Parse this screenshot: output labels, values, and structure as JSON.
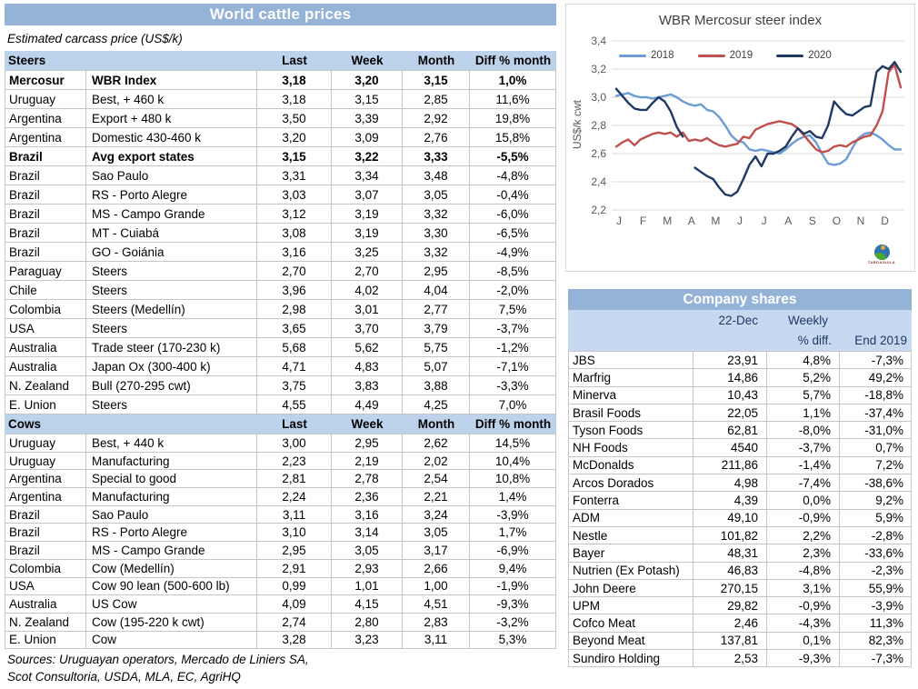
{
  "left_table": {
    "title": "World cattle prices",
    "subtitle": "Estimated carcass price (US$/k)",
    "col_last": "Last",
    "col_week": "Week",
    "col_month": "Month",
    "col_diff": "Diff % month",
    "steers_label": "Steers",
    "cows_label": "Cows",
    "steers_rows": [
      {
        "country": "Mercosur",
        "item": "WBR Index",
        "last": "3,18",
        "week": "3,20",
        "month": "3,15",
        "diff": "1,0%",
        "bold": true
      },
      {
        "country": "Uruguay",
        "item": "Best, + 460 k",
        "last": "3,18",
        "week": "3,15",
        "month": "2,85",
        "diff": "11,6%"
      },
      {
        "country": "Argentina",
        "item": "Export + 480 k",
        "last": "3,50",
        "week": "3,39",
        "month": "2,92",
        "diff": "19,8%"
      },
      {
        "country": "Argentina",
        "item": "Domestic 430-460 k",
        "last": "3,20",
        "week": "3,09",
        "month": "2,76",
        "diff": "15,8%"
      },
      {
        "country": "Brazil",
        "item": "Avg export states",
        "last": "3,15",
        "week": "3,22",
        "month": "3,33",
        "diff": "-5,5%",
        "bold": true
      },
      {
        "country": "Brazil",
        "item": "Sao Paulo",
        "last": "3,31",
        "week": "3,34",
        "month": "3,48",
        "diff": "-4,8%"
      },
      {
        "country": "Brazil",
        "item": "RS - Porto Alegre",
        "last": "3,03",
        "week": "3,07",
        "month": "3,05",
        "diff": "-0,4%"
      },
      {
        "country": "Brazil",
        "item": "MS - Campo Grande",
        "last": "3,12",
        "week": "3,19",
        "month": "3,32",
        "diff": "-6,0%"
      },
      {
        "country": "Brazil",
        "item": "MT - Cuiabá",
        "last": "3,08",
        "week": "3,19",
        "month": "3,30",
        "diff": "-6,5%"
      },
      {
        "country": "Brazil",
        "item": "GO - Goiánia",
        "last": "3,16",
        "week": "3,25",
        "month": "3,32",
        "diff": "-4,9%"
      },
      {
        "country": "Paraguay",
        "item": "Steers",
        "last": "2,70",
        "week": "2,70",
        "month": "2,95",
        "diff": "-8,5%"
      },
      {
        "country": "Chile",
        "item": "Steers",
        "last": "3,96",
        "week": "4,02",
        "month": "4,04",
        "diff": "-2,0%"
      },
      {
        "country": "Colombia",
        "item": "Steers (Medellín)",
        "last": "2,98",
        "week": "3,01",
        "month": "2,77",
        "diff": "7,5%"
      },
      {
        "country": "USA",
        "item": "Steers",
        "last": "3,65",
        "week": "3,70",
        "month": "3,79",
        "diff": "-3,7%"
      },
      {
        "country": "Australia",
        "item": "Trade steer (170-230 k)",
        "last": "5,68",
        "week": "5,62",
        "month": "5,75",
        "diff": "-1,2%"
      },
      {
        "country": "Australia",
        "item": "Japan Ox (300-400 k)",
        "last": "4,71",
        "week": "4,83",
        "month": "5,07",
        "diff": "-7,1%"
      },
      {
        "country": "N. Zealand",
        "item": "Bull (270-295 cwt)",
        "last": "3,75",
        "week": "3,83",
        "month": "3,88",
        "diff": "-3,3%"
      },
      {
        "country": "E. Union",
        "item": "Steers",
        "last": "4,55",
        "week": "4,49",
        "month": "4,25",
        "diff": "7,0%"
      }
    ],
    "cows_rows": [
      {
        "country": "Uruguay",
        "item": "Best, + 440 k",
        "last": "3,00",
        "week": "2,95",
        "month": "2,62",
        "diff": "14,5%"
      },
      {
        "country": "Uruguay",
        "item": "Manufacturing",
        "last": "2,23",
        "week": "2,19",
        "month": "2,02",
        "diff": "10,4%"
      },
      {
        "country": "Argentina",
        "item": "Special to good",
        "last": "2,81",
        "week": "2,78",
        "month": "2,54",
        "diff": "10,8%"
      },
      {
        "country": "Argentina",
        "item": "Manufacturing",
        "last": "2,24",
        "week": "2,36",
        "month": "2,21",
        "diff": "1,4%"
      },
      {
        "country": "Brazil",
        "item": "Sao Paulo",
        "last": "3,11",
        "week": "3,16",
        "month": "3,24",
        "diff": "-3,9%"
      },
      {
        "country": "Brazil",
        "item": "RS - Porto Alegre",
        "last": "3,10",
        "week": "3,14",
        "month": "3,05",
        "diff": "1,7%"
      },
      {
        "country": "Brazil",
        "item": "MS - Campo Grande",
        "last": "2,95",
        "week": "3,05",
        "month": "3,17",
        "diff": "-6,9%"
      },
      {
        "country": "Colombia",
        "item": "Cow (Medellín)",
        "last": "2,91",
        "week": "2,93",
        "month": "2,66",
        "diff": "9,4%"
      },
      {
        "country": "USA",
        "item": "Cow 90 lean (500-600 lb)",
        "last": "0,99",
        "week": "1,01",
        "month": "1,00",
        "diff": "-1,9%"
      },
      {
        "country": "Australia",
        "item": "US Cow",
        "last": "4,09",
        "week": "4,15",
        "month": "4,51",
        "diff": "-9,3%"
      },
      {
        "country": "N. Zealand",
        "item": "Cow (195-220 k cwt)",
        "last": "2,74",
        "week": "2,80",
        "month": "2,83",
        "diff": "-3,2%"
      },
      {
        "country": "E. Union",
        "item": "Cow",
        "last": "3,28",
        "week": "3,23",
        "month": "3,11",
        "diff": "5,3%"
      }
    ],
    "sources_line1": "Sources: Uruguayan operators, Mercado de Liniers SA,",
    "sources_line2": "Scot Consultoria, USDA, MLA, EC, AgriHQ"
  },
  "chart_data": {
    "type": "line",
    "title": "WBR Mercosur steer index",
    "ylabel": "US$/k cwt",
    "ylim": [
      2.2,
      3.4
    ],
    "yticks": [
      {
        "v": 3.4,
        "label": "3,4"
      },
      {
        "v": 3.2,
        "label": "3,2"
      },
      {
        "v": 3.0,
        "label": "3,0"
      },
      {
        "v": 2.8,
        "label": "2,8"
      },
      {
        "v": 2.6,
        "label": "2,6"
      },
      {
        "v": 2.4,
        "label": "2,4"
      },
      {
        "v": 2.2,
        "label": "2,2"
      }
    ],
    "x_months": [
      "J",
      "F",
      "M",
      "A",
      "M",
      "J",
      "J",
      "A",
      "S",
      "O",
      "N",
      "D"
    ],
    "grid": true,
    "legend_position": "top",
    "series": [
      {
        "name": "2018",
        "color": "#6D9CD3",
        "values": [
          3.01,
          3.02,
          3.03,
          3.01,
          3.0,
          3.0,
          2.99,
          3.0,
          3.01,
          3.02,
          3.0,
          2.97,
          2.95,
          2.94,
          2.95,
          2.91,
          2.9,
          2.86,
          2.8,
          2.73,
          2.69,
          2.68,
          2.63,
          2.62,
          2.63,
          2.62,
          2.61,
          2.6,
          2.63,
          2.67,
          2.7,
          2.72,
          2.73,
          2.68,
          2.6,
          2.53,
          2.52,
          2.53,
          2.56,
          2.64,
          2.71,
          2.74,
          2.75,
          2.73,
          2.7,
          2.66,
          2.63,
          2.63
        ]
      },
      {
        "name": "2019",
        "color": "#C0504D",
        "values": [
          2.65,
          2.68,
          2.7,
          2.66,
          2.7,
          2.72,
          2.74,
          2.75,
          2.74,
          2.75,
          2.72,
          2.75,
          2.69,
          2.7,
          2.69,
          2.71,
          2.68,
          2.66,
          2.65,
          2.66,
          2.67,
          2.72,
          2.71,
          2.77,
          2.79,
          2.81,
          2.82,
          2.83,
          2.82,
          2.81,
          2.78,
          2.73,
          2.68,
          2.63,
          2.61,
          2.62,
          2.65,
          2.66,
          2.65,
          2.68,
          2.7,
          2.72,
          2.73,
          2.8,
          2.9,
          3.18,
          3.23,
          3.07
        ]
      },
      {
        "name": "2020",
        "color": "#1F3864",
        "values": [
          3.06,
          3.01,
          2.96,
          2.92,
          2.91,
          2.91,
          2.96,
          3.0,
          2.97,
          2.9,
          2.79,
          2.72,
          null,
          2.5,
          2.47,
          2.44,
          2.42,
          2.36,
          2.31,
          2.3,
          2.33,
          2.42,
          2.52,
          2.58,
          2.51,
          2.6,
          2.6,
          2.62,
          2.65,
          2.72,
          2.78,
          2.74,
          2.76,
          2.72,
          2.71,
          2.8,
          2.97,
          2.92,
          2.88,
          2.87,
          2.9,
          2.93,
          2.94,
          3.18,
          3.22,
          3.2,
          3.25,
          3.18
        ]
      }
    ]
  },
  "logo": {
    "label": "TARDAGUILA"
  },
  "company_table": {
    "title": "Company shares",
    "header_date": "22-Dec",
    "header_weekly": "Weekly",
    "header_pdiff": "% diff.",
    "header_end": "End 2019",
    "rows": [
      {
        "name": "JBS",
        "price": "23,91",
        "weekly": "4,8%",
        "end2019": "-7,3%"
      },
      {
        "name": "Marfrig",
        "price": "14,86",
        "weekly": "5,2%",
        "end2019": "49,2%"
      },
      {
        "name": "Minerva",
        "price": "10,43",
        "weekly": "5,7%",
        "end2019": "-18,8%"
      },
      {
        "name": "Brasil Foods",
        "price": "22,05",
        "weekly": "1,1%",
        "end2019": "-37,4%"
      },
      {
        "name": "Tyson Foods",
        "price": "62,81",
        "weekly": "-8,0%",
        "end2019": "-31,0%"
      },
      {
        "name": "NH Foods",
        "price": "4540",
        "weekly": "-3,7%",
        "end2019": "0,7%"
      },
      {
        "name": "McDonalds",
        "price": "211,86",
        "weekly": "-1,4%",
        "end2019": "7,2%"
      },
      {
        "name": "Arcos Dorados",
        "price": "4,98",
        "weekly": "-7,4%",
        "end2019": "-38,6%"
      },
      {
        "name": "Fonterra",
        "price": "4,39",
        "weekly": "0,0%",
        "end2019": "9,2%"
      },
      {
        "name": "ADM",
        "price": "49,10",
        "weekly": "-0,9%",
        "end2019": "5,9%"
      },
      {
        "name": "Nestle",
        "price": "101,82",
        "weekly": "2,2%",
        "end2019": "-2,8%"
      },
      {
        "name": "Bayer",
        "price": "48,31",
        "weekly": "2,3%",
        "end2019": "-33,6%"
      },
      {
        "name": "Nutrien (Ex Potash)",
        "price": "46,83",
        "weekly": "-4,8%",
        "end2019": "-2,3%"
      },
      {
        "name": "John Deere",
        "price": "270,15",
        "weekly": "3,1%",
        "end2019": "55,9%"
      },
      {
        "name": "UPM",
        "price": "29,82",
        "weekly": "-0,9%",
        "end2019": "-3,9%"
      },
      {
        "name": "Cofco Meat",
        "price": "2,46",
        "weekly": "-4,3%",
        "end2019": "11,3%"
      },
      {
        "name": "Beyond Meat",
        "price": "137,81",
        "weekly": "0,1%",
        "end2019": "82,3%"
      },
      {
        "name": "Sundiro Holding",
        "price": "2,53",
        "weekly": "-9,3%",
        "end2019": "-7,3%"
      }
    ]
  },
  "colors": {
    "title_bar": "#95B3D7",
    "section_band": "#BDD3EC",
    "company_header_band": "#C6D9F1",
    "grid_line": "#D9D9D9",
    "axis_text": "#595959",
    "series_2018": "#6D9CD3",
    "series_2019": "#C0504D",
    "series_2020": "#1F3864"
  }
}
